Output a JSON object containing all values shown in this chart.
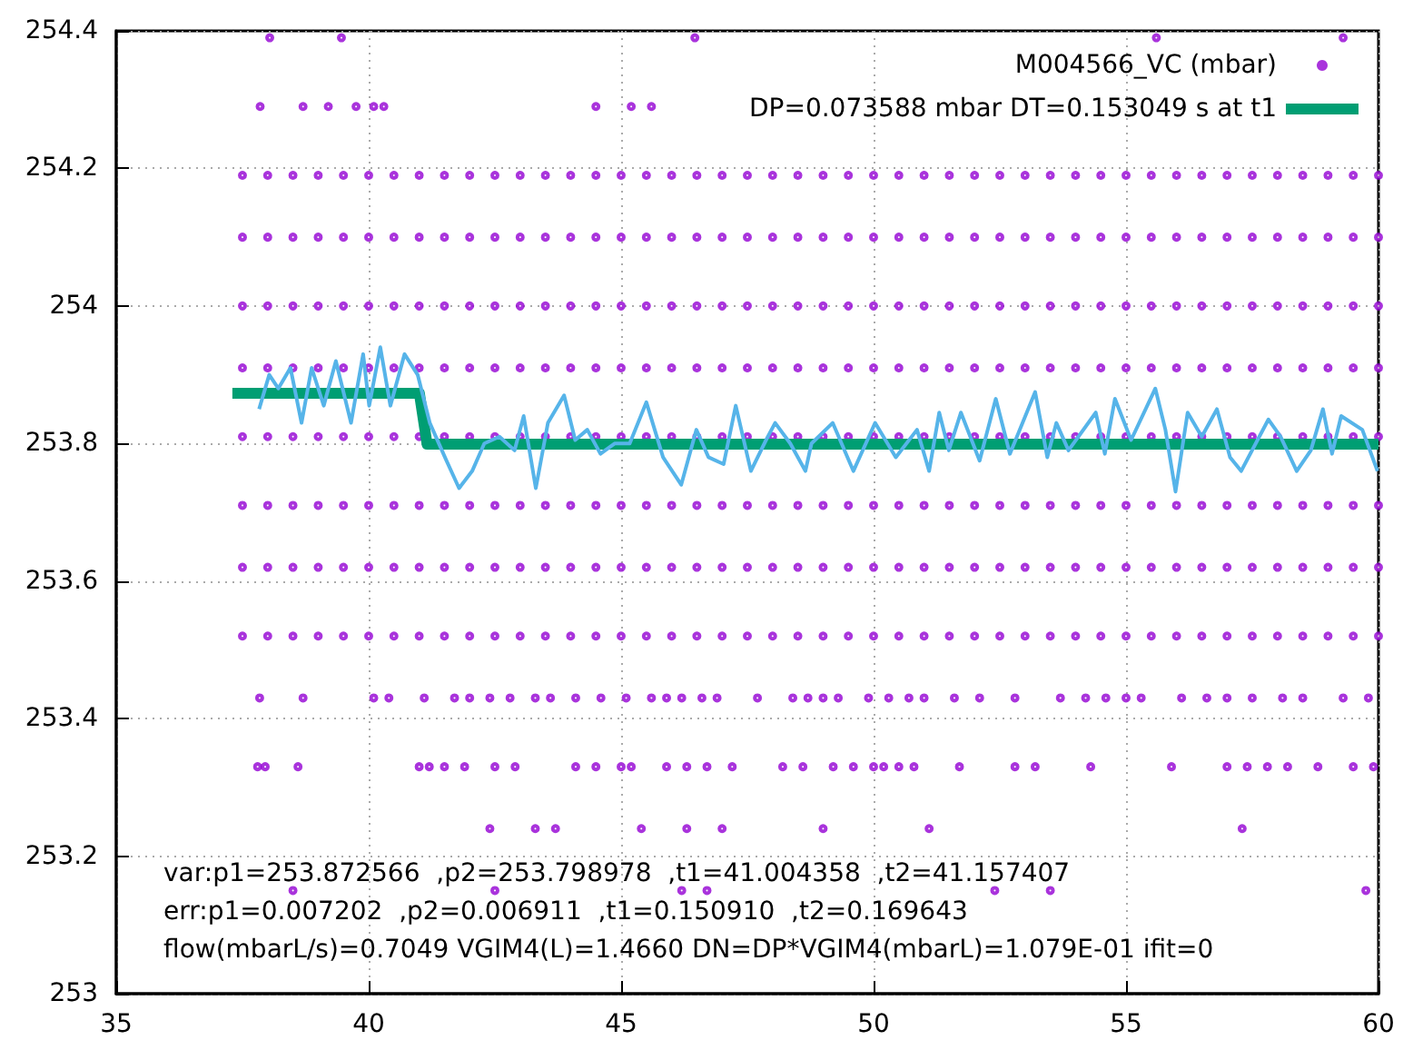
{
  "chart_data": {
    "type": "scatter",
    "xlim": [
      35,
      60
    ],
    "xticks": [
      35,
      40,
      45,
      50,
      55,
      60
    ],
    "ylim": [
      253,
      254.4
    ],
    "yticks": [
      253,
      253.2,
      253.4,
      253.6,
      253.8,
      254,
      254.2,
      254.4
    ],
    "grid": true,
    "legend": "top right",
    "annotations": [
      "var:p1=253.872566  ,p2=253.798978  ,t1=41.004358  ,t2=41.157407",
      "err:p1=0.007202  ,p2=0.006911  ,t1=0.150910  ,t2=0.169643",
      "flow(mbarL/s)=0.7049 VGIM4(L)=1.4660 DN=DP*VGIM4(mbarL)=1.079E-01 ifit=0"
    ],
    "series": [
      {
        "name": "M004566_VC (mbar)",
        "marker": "circle",
        "color": "#9400d3",
        "x": [
          37.5,
          38,
          38.5,
          39,
          39.5,
          40,
          40.5,
          41,
          41.5,
          42,
          42.5,
          43,
          43.5,
          44,
          44.5,
          45,
          45.5,
          46,
          46.5,
          47,
          47.5,
          48,
          48.5,
          49,
          49.5,
          50,
          50.5,
          51,
          51.5,
          52,
          52.5,
          53,
          53.5,
          54,
          54.5,
          55,
          55.5,
          56,
          56.5,
          57,
          57.5,
          58,
          58.5,
          59,
          59.5,
          60,
          37.5,
          38,
          38.5,
          39,
          39.5,
          40,
          40.5,
          41,
          41.5,
          42,
          42.5,
          43,
          43.5,
          44,
          44.5,
          45,
          45.5,
          46,
          46.5,
          47,
          47.5,
          48,
          48.5,
          49,
          49.5,
          50,
          50.5,
          51,
          51.5,
          52,
          52.5,
          53,
          53.5,
          54,
          54.5,
          55,
          55.5,
          56,
          56.5,
          57,
          57.5,
          58,
          58.5,
          59,
          59.5,
          60,
          37.5,
          38,
          38.5,
          39,
          39.5,
          40,
          40.5,
          41,
          41.5,
          42,
          42.5,
          43,
          43.5,
          44,
          44.5,
          45,
          45.5,
          46,
          46.5,
          47,
          47.5,
          48,
          48.5,
          49,
          49.5,
          50,
          50.5,
          51,
          51.5,
          52,
          52.5,
          53,
          53.5,
          54,
          54.5,
          55,
          55.5,
          56,
          56.5,
          57,
          57.5,
          58,
          58.5,
          59,
          59.5,
          60,
          37.5,
          38,
          38.5,
          39,
          39.5,
          40,
          40.5,
          41,
          41.5,
          42,
          42.5,
          43,
          43.5,
          44,
          44.5,
          45,
          45.5,
          46,
          46.5,
          47,
          47.5,
          48,
          48.5,
          49,
          49.5,
          50,
          50.5,
          51,
          51.5,
          52,
          52.5,
          53,
          53.5,
          54,
          54.5,
          55,
          55.5,
          56,
          56.5,
          57,
          57.5,
          58,
          58.5,
          59,
          59.5,
          60,
          37.5,
          38,
          38.5,
          39,
          39.5,
          40,
          40.5,
          41,
          41.5,
          42,
          42.5,
          43,
          43.5,
          44,
          44.5,
          45,
          45.5,
          46,
          46.5,
          47,
          47.5,
          48,
          48.5,
          49,
          49.5,
          50,
          50.5,
          51,
          51.5,
          52,
          52.5,
          53,
          53.5,
          54,
          54.5,
          55,
          55.5,
          56,
          56.5,
          57,
          57.5,
          58,
          58.5,
          59,
          59.5,
          60,
          37.5,
          38,
          38.5,
          39,
          39.5,
          40,
          40.5,
          41,
          41.5,
          42,
          42.5,
          43,
          43.5,
          44,
          44.5,
          45,
          45.5,
          46,
          46.5,
          47,
          47.5,
          48,
          48.5,
          49,
          49.5,
          50,
          50.5,
          51,
          51.5,
          52,
          52.5,
          53,
          53.5,
          54,
          54.5,
          55,
          55.5,
          56,
          56.5,
          57,
          57.5,
          58,
          58.5,
          59,
          59.5,
          60,
          37.5,
          38,
          38.5,
          39,
          39.5,
          40,
          40.5,
          41,
          41.5,
          42,
          42.5,
          43,
          43.5,
          44,
          44.5,
          45,
          45.5,
          46,
          46.5,
          47,
          47.5,
          48,
          48.5,
          49,
          49.5,
          50,
          50.5,
          51,
          51.5,
          52,
          52.5,
          53,
          53.5,
          54,
          54.5,
          55,
          55.5,
          56,
          56.5,
          57,
          57.5,
          58,
          58.5,
          59,
          59.5,
          60,
          37.5,
          38,
          38.5,
          39,
          39.5,
          40,
          40.5,
          41,
          41.5,
          42,
          42.5,
          43,
          43.5,
          44,
          44.5,
          45,
          45.5,
          46,
          46.5,
          47,
          47.5,
          48,
          48.5,
          49,
          49.5,
          50,
          50.5,
          51,
          51.5,
          52,
          52.5,
          53,
          53.5,
          54,
          54.5,
          55,
          55.5,
          56,
          56.5,
          57,
          57.5,
          58,
          58.5,
          59,
          59.5,
          60,
          37.84,
          38.7,
          40.1,
          40.4,
          41.1,
          41.7,
          42.0,
          42.4,
          42.8,
          43.3,
          43.6,
          44.1,
          44.6,
          45.1,
          45.6,
          45.9,
          46.2,
          46.6,
          46.9,
          47.7,
          48.4,
          48.7,
          49.0,
          49.3,
          49.9,
          50.3,
          50.7,
          51.0,
          51.6,
          52.1,
          52.8,
          53.7,
          54.2,
          54.6,
          55.0,
          55.3,
          56.1,
          56.6,
          57.0,
          57.5,
          58.1,
          58.5,
          59.3,
          59.8,
          37.8,
          37.95,
          38.6,
          41.0,
          41.2,
          41.5,
          41.9,
          42.5,
          42.9,
          44.1,
          44.5,
          45.0,
          45.2,
          45.9,
          46.3,
          46.7,
          47.2,
          48.2,
          48.6,
          49.2,
          49.6,
          50.0,
          50.2,
          50.5,
          50.8,
          51.7,
          52.8,
          53.2,
          54.3,
          55.9,
          57.0,
          57.4,
          57.8,
          58.2,
          58.8,
          59.5,
          59.9,
          42.4,
          43.3,
          43.7,
          45.4,
          46.3,
          47.0,
          49.0,
          51.1,
          57.3,
          38.5,
          42.5,
          46.2,
          46.7,
          52.4,
          53.5,
          59.75,
          38.04,
          39.46,
          46.46,
          55.6,
          59.3,
          37.85,
          38.7,
          39.2,
          39.75,
          40.1,
          40.3,
          44.5,
          45.2,
          45.6
        ],
        "values": [
          254.19,
          254.19,
          254.19,
          254.19,
          254.19,
          254.19,
          254.19,
          254.19,
          254.19,
          254.19,
          254.19,
          254.19,
          254.19,
          254.19,
          254.19,
          254.19,
          254.19,
          254.19,
          254.19,
          254.19,
          254.19,
          254.19,
          254.19,
          254.19,
          254.19,
          254.19,
          254.19,
          254.19,
          254.19,
          254.19,
          254.19,
          254.19,
          254.19,
          254.19,
          254.19,
          254.19,
          254.19,
          254.19,
          254.19,
          254.19,
          254.19,
          254.19,
          254.19,
          254.19,
          254.19,
          254.19,
          254.1,
          254.1,
          254.1,
          254.1,
          254.1,
          254.1,
          254.1,
          254.1,
          254.1,
          254.1,
          254.1,
          254.1,
          254.1,
          254.1,
          254.1,
          254.1,
          254.1,
          254.1,
          254.1,
          254.1,
          254.1,
          254.1,
          254.1,
          254.1,
          254.1,
          254.1,
          254.1,
          254.1,
          254.1,
          254.1,
          254.1,
          254.1,
          254.1,
          254.1,
          254.1,
          254.1,
          254.1,
          254.1,
          254.1,
          254.1,
          254.1,
          254.1,
          254.1,
          254.1,
          254.1,
          254.1,
          254,
          254,
          254,
          254,
          254,
          254,
          254,
          254,
          254,
          254,
          254,
          254,
          254,
          254,
          254,
          254,
          254,
          254,
          254,
          254,
          254,
          254,
          254,
          254,
          254,
          254,
          254,
          254,
          254,
          254,
          254,
          254,
          254,
          254,
          254,
          254,
          254,
          254,
          254,
          254,
          254,
          254,
          254,
          254,
          254,
          254,
          253.91,
          253.91,
          253.91,
          253.91,
          253.91,
          253.91,
          253.91,
          253.91,
          253.91,
          253.91,
          253.91,
          253.91,
          253.91,
          253.91,
          253.91,
          253.91,
          253.91,
          253.91,
          253.91,
          253.91,
          253.91,
          253.91,
          253.91,
          253.91,
          253.91,
          253.91,
          253.91,
          253.91,
          253.91,
          253.91,
          253.91,
          253.91,
          253.91,
          253.91,
          253.91,
          253.91,
          253.91,
          253.91,
          253.91,
          253.91,
          253.91,
          253.91,
          253.91,
          253.91,
          253.91,
          253.91,
          253.81,
          253.81,
          253.81,
          253.81,
          253.81,
          253.81,
          253.81,
          253.81,
          253.81,
          253.81,
          253.81,
          253.81,
          253.81,
          253.81,
          253.81,
          253.81,
          253.81,
          253.81,
          253.81,
          253.81,
          253.81,
          253.81,
          253.81,
          253.81,
          253.81,
          253.81,
          253.81,
          253.81,
          253.81,
          253.81,
          253.81,
          253.81,
          253.81,
          253.81,
          253.81,
          253.81,
          253.81,
          253.81,
          253.81,
          253.81,
          253.81,
          253.81,
          253.81,
          253.81,
          253.81,
          253.81,
          253.71,
          253.71,
          253.71,
          253.71,
          253.71,
          253.71,
          253.71,
          253.71,
          253.71,
          253.71,
          253.71,
          253.71,
          253.71,
          253.71,
          253.71,
          253.71,
          253.71,
          253.71,
          253.71,
          253.71,
          253.71,
          253.71,
          253.71,
          253.71,
          253.71,
          253.71,
          253.71,
          253.71,
          253.71,
          253.71,
          253.71,
          253.71,
          253.71,
          253.71,
          253.71,
          253.71,
          253.71,
          253.71,
          253.71,
          253.71,
          253.71,
          253.71,
          253.71,
          253.71,
          253.71,
          253.71,
          253.62,
          253.62,
          253.62,
          253.62,
          253.62,
          253.62,
          253.62,
          253.62,
          253.62,
          253.62,
          253.62,
          253.62,
          253.62,
          253.62,
          253.62,
          253.62,
          253.62,
          253.62,
          253.62,
          253.62,
          253.62,
          253.62,
          253.62,
          253.62,
          253.62,
          253.62,
          253.62,
          253.62,
          253.62,
          253.62,
          253.62,
          253.62,
          253.62,
          253.62,
          253.62,
          253.62,
          253.62,
          253.62,
          253.62,
          253.62,
          253.62,
          253.62,
          253.62,
          253.62,
          253.62,
          253.62,
          253.52,
          253.52,
          253.52,
          253.52,
          253.52,
          253.52,
          253.52,
          253.52,
          253.52,
          253.52,
          253.52,
          253.52,
          253.52,
          253.52,
          253.52,
          253.52,
          253.52,
          253.52,
          253.52,
          253.52,
          253.52,
          253.52,
          253.52,
          253.52,
          253.52,
          253.52,
          253.52,
          253.52,
          253.52,
          253.52,
          253.52,
          253.52,
          253.52,
          253.52,
          253.52,
          253.52,
          253.52,
          253.52,
          253.52,
          253.52,
          253.52,
          253.52,
          253.52,
          253.52,
          253.52,
          253.52,
          253.43,
          253.43,
          253.43,
          253.43,
          253.43,
          253.43,
          253.43,
          253.43,
          253.43,
          253.43,
          253.43,
          253.43,
          253.43,
          253.43,
          253.43,
          253.43,
          253.43,
          253.43,
          253.43,
          253.43,
          253.43,
          253.43,
          253.43,
          253.43,
          253.43,
          253.43,
          253.43,
          253.43,
          253.43,
          253.43,
          253.43,
          253.43,
          253.43,
          253.43,
          253.43,
          253.43,
          253.43,
          253.43,
          253.43,
          253.43,
          253.43,
          253.43,
          253.43,
          253.43,
          253.33,
          253.33,
          253.33,
          253.33,
          253.33,
          253.33,
          253.33,
          253.33,
          253.33,
          253.33,
          253.33,
          253.33,
          253.33,
          253.33,
          253.33,
          253.33,
          253.33,
          253.33,
          253.33,
          253.33,
          253.33,
          253.33,
          253.33,
          253.33,
          253.33,
          253.33,
          253.33,
          253.33,
          253.33,
          253.33,
          253.33,
          253.33,
          253.33,
          253.33,
          253.33,
          253.33,
          253.33,
          253.24,
          253.24,
          253.24,
          253.24,
          253.24,
          253.24,
          253.24,
          253.24,
          253.24,
          253.15,
          253.15,
          253.15,
          253.15,
          253.15,
          253.15,
          253.15,
          254.39,
          254.39,
          254.39,
          254.39,
          254.39,
          254.29,
          254.29,
          254.29,
          254.29,
          254.29,
          254.29,
          254.29,
          254.29,
          254.29
        ]
      },
      {
        "type": "line",
        "marker": "none",
        "color": "#56b4e9",
        "x": [
          37.83,
          38.03,
          38.21,
          38.45,
          38.67,
          38.87,
          39.11,
          39.35,
          39.65,
          39.89,
          40.01,
          40.23,
          40.43,
          40.71,
          40.97,
          41.21,
          41.51,
          41.79,
          42.05,
          42.29,
          42.59,
          42.89,
          43.07,
          43.31,
          43.55,
          43.87,
          44.09,
          44.33,
          44.59,
          44.87,
          45.17,
          45.5,
          45.83,
          46.19,
          46.49,
          46.73,
          47.03,
          47.27,
          47.57,
          47.87,
          48.05,
          48.35,
          48.65,
          48.77,
          49.19,
          49.6,
          50.03,
          50.44,
          50.86,
          51.1,
          51.3,
          51.49,
          51.73,
          52.1,
          52.42,
          52.7,
          53.2,
          53.44,
          53.62,
          53.86,
          54.4,
          54.58,
          54.78,
          55.1,
          55.58,
          55.78,
          55.98,
          56.22,
          56.5,
          56.8,
          57.06,
          57.28,
          57.82,
          58.06,
          58.38,
          58.66,
          58.9,
          59.08,
          59.26,
          59.68,
          59.98
        ],
        "values": [
          253.85,
          253.9,
          253.88,
          253.91,
          253.83,
          253.91,
          253.855,
          253.92,
          253.83,
          253.93,
          253.855,
          253.94,
          253.855,
          253.93,
          253.9,
          253.83,
          253.78,
          253.735,
          253.76,
          253.8,
          253.81,
          253.79,
          253.84,
          253.735,
          253.83,
          253.87,
          253.805,
          253.82,
          253.785,
          253.8,
          253.8,
          253.86,
          253.78,
          253.74,
          253.82,
          253.78,
          253.77,
          253.855,
          253.76,
          253.805,
          253.83,
          253.8,
          253.76,
          253.8,
          253.83,
          253.76,
          253.83,
          253.78,
          253.82,
          253.76,
          253.845,
          253.79,
          253.845,
          253.775,
          253.865,
          253.785,
          253.875,
          253.78,
          253.83,
          253.79,
          253.845,
          253.785,
          253.865,
          253.805,
          253.88,
          253.82,
          253.73,
          253.845,
          253.81,
          253.85,
          253.78,
          253.76,
          253.835,
          253.81,
          253.76,
          253.79,
          253.85,
          253.785,
          253.84,
          253.82,
          253.76
        ]
      },
      {
        "name": "DP=0.073588 mbar DT=0.153049 s at t1",
        "type": "line",
        "marker": "none",
        "color": "#009e73",
        "x": [
          37.3,
          41.004,
          41.157,
          60
        ],
        "values": [
          253.873,
          253.873,
          253.799,
          253.799
        ]
      }
    ]
  }
}
